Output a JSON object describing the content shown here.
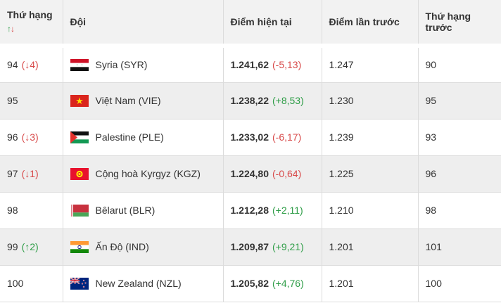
{
  "header": {
    "rank": "Thứ hạng",
    "sort_up": "↑",
    "sort_down": "↓",
    "team": "Đội",
    "points": "Điểm hiện tại",
    "prev_points": "Điểm lần trước",
    "prev_rank": "Thứ hạng trước"
  },
  "rows": [
    {
      "rank": "94",
      "change": "(↓4)",
      "change_dir": "down",
      "flag": "syria-flag-icon",
      "team": "Syria (SYR)",
      "points": "1.241,62",
      "delta": "(-5,13)",
      "delta_dir": "down",
      "prev_points": "1.247",
      "prev_rank": "90"
    },
    {
      "rank": "95",
      "change": "",
      "change_dir": "",
      "flag": "vietnam-flag-icon",
      "team": "Việt Nam (VIE)",
      "points": "1.238,22",
      "delta": "(+8,53)",
      "delta_dir": "up",
      "prev_points": "1.230",
      "prev_rank": "95"
    },
    {
      "rank": "96",
      "change": "(↓3)",
      "change_dir": "down",
      "flag": "palestine-flag-icon",
      "team": "Palestine (PLE)",
      "points": "1.233,02",
      "delta": "(-6,17)",
      "delta_dir": "down",
      "prev_points": "1.239",
      "prev_rank": "93"
    },
    {
      "rank": "97",
      "change": "(↓1)",
      "change_dir": "down",
      "flag": "kyrgyzstan-flag-icon",
      "team": "Cộng hoà Kyrgyz (KGZ)",
      "points": "1.224,80",
      "delta": "(-0,64)",
      "delta_dir": "down",
      "prev_points": "1.225",
      "prev_rank": "96"
    },
    {
      "rank": "98",
      "change": "",
      "change_dir": "",
      "flag": "belarus-flag-icon",
      "team": "Bêlarut (BLR)",
      "points": "1.212,28",
      "delta": "(+2,11)",
      "delta_dir": "up",
      "prev_points": "1.210",
      "prev_rank": "98"
    },
    {
      "rank": "99",
      "change": "(↑2)",
      "change_dir": "up",
      "flag": "india-flag-icon",
      "team": "Ấn Độ (IND)",
      "points": "1.209,87",
      "delta": "(+9,21)",
      "delta_dir": "up",
      "prev_points": "1.201",
      "prev_rank": "101"
    },
    {
      "rank": "100",
      "change": "",
      "change_dir": "",
      "flag": "new-zealand-flag-icon",
      "team": "New Zealand (NZL)",
      "points": "1.205,82",
      "delta": "(+4,76)",
      "delta_dir": "up",
      "prev_points": "1.201",
      "prev_rank": "100"
    }
  ],
  "colors": {
    "up": "#2e9d47",
    "down": "#d84a4a",
    "header_bg": "#f2f2f2",
    "stripe_bg": "#eeeeee"
  }
}
